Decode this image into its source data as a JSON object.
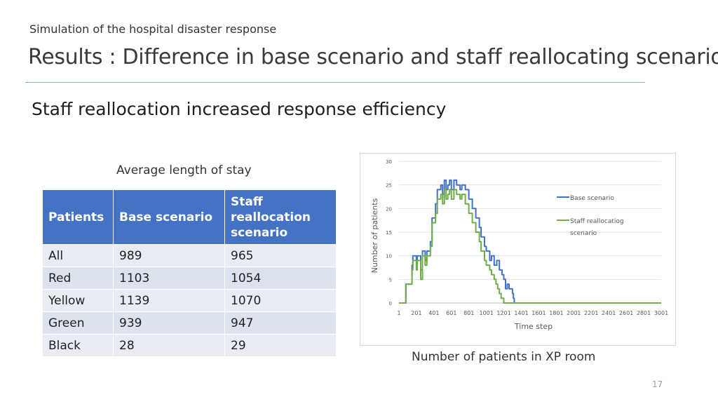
{
  "slide": {
    "subtitle": "Simulation of the hospital disaster response",
    "title": "Results : Difference in base scenario and staff reallocating scenario",
    "headline": "Staff reallocation increased response efficiency",
    "page_number": "17"
  },
  "table": {
    "caption": "Average length of stay",
    "headers": [
      "Patients",
      "Base scenario",
      "Staff reallocation scenario"
    ],
    "rows": [
      {
        "patients": "All",
        "base": "989",
        "staff": "965"
      },
      {
        "patients": "Red",
        "base": "1103",
        "staff": "1054"
      },
      {
        "patients": "Yellow",
        "base": "1139",
        "staff": "1070"
      },
      {
        "patients": "Green",
        "base": "939",
        "staff": "947"
      },
      {
        "patients": "Black",
        "base": "28",
        "staff": "29"
      }
    ]
  },
  "chart_caption": "Number of patients in XP room",
  "chart_data": {
    "type": "line",
    "xlabel": "Time step",
    "ylabel": "Number of patients",
    "x_tick_labels": [
      "1",
      "201",
      "401",
      "601",
      "801",
      "1001",
      "1201",
      "1401",
      "1601",
      "1801",
      "2001",
      "2201",
      "2401",
      "2601",
      "2801",
      "3001"
    ],
    "y_ticks": [
      0,
      5,
      10,
      15,
      20,
      25,
      30
    ],
    "xlim": [
      1,
      3001
    ],
    "ylim": [
      0,
      30
    ],
    "legend_position": "right",
    "series": [
      {
        "name": "Base scenario",
        "color": "#4472c4",
        "x": [
          1,
          40,
          80,
          90,
          150,
          160,
          200,
          210,
          250,
          270,
          300,
          320,
          360,
          380,
          420,
          440,
          480,
          500,
          520,
          540,
          560,
          580,
          600,
          630,
          660,
          700,
          720,
          760,
          800,
          840,
          880,
          920,
          940,
          980,
          1000,
          1040,
          1060,
          1090,
          1120,
          1150,
          1180,
          1200,
          1220,
          1240,
          1260,
          1300,
          1310,
          1320,
          1350,
          3001
        ],
        "y": [
          0,
          0,
          4,
          4,
          8,
          10,
          9,
          10,
          7,
          11,
          9,
          11,
          13,
          18,
          21,
          24,
          25,
          23,
          26,
          24,
          25,
          26,
          24,
          26,
          25,
          24,
          25,
          24,
          22,
          20,
          18,
          16,
          14,
          12,
          11,
          9,
          10,
          8,
          9,
          7,
          6,
          5,
          3,
          4,
          3,
          2,
          1,
          0,
          0,
          0
        ]
      },
      {
        "name": "Staff reallocatiog scenario",
        "color": "#70ad47",
        "x": [
          1,
          40,
          80,
          90,
          150,
          160,
          200,
          210,
          250,
          270,
          300,
          320,
          360,
          380,
          420,
          440,
          480,
          500,
          520,
          540,
          560,
          580,
          600,
          630,
          660,
          700,
          720,
          760,
          800,
          840,
          880,
          920,
          940,
          980,
          1000,
          1040,
          1060,
          1090,
          1110,
          1130,
          1150,
          1170,
          1200,
          3001
        ],
        "y": [
          0,
          0,
          4,
          4,
          7,
          9,
          7,
          9,
          5,
          10,
          8,
          10,
          12,
          17,
          19,
          22,
          23,
          21,
          24,
          22,
          23,
          24,
          22,
          24,
          23,
          22,
          23,
          21,
          19,
          17,
          15,
          13,
          11,
          9,
          8,
          7,
          6,
          5,
          4,
          3,
          2,
          1,
          0,
          0
        ]
      }
    ]
  }
}
